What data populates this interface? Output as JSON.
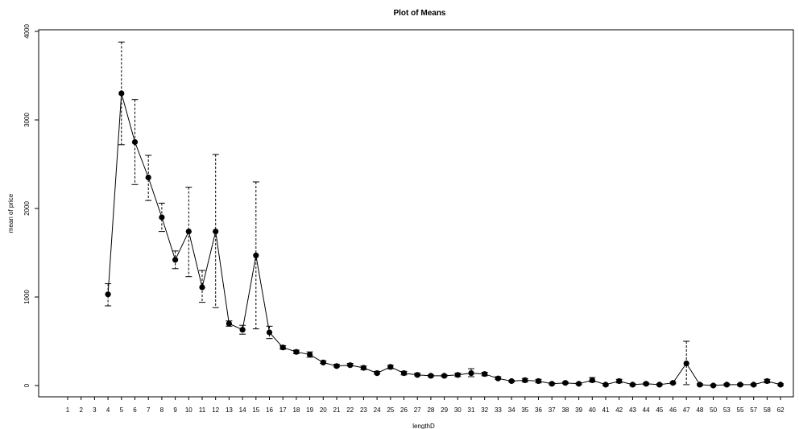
{
  "chart_data": {
    "type": "line",
    "title": "Plot of Means",
    "xlabel": "lengthD",
    "ylabel": "mean of price",
    "categories": [
      "1",
      "2",
      "3",
      "4",
      "5",
      "6",
      "7",
      "8",
      "9",
      "10",
      "11",
      "12",
      "13",
      "14",
      "15",
      "16",
      "17",
      "18",
      "19",
      "20",
      "21",
      "22",
      "23",
      "24",
      "25",
      "26",
      "27",
      "28",
      "29",
      "30",
      "31",
      "32",
      "33",
      "34",
      "35",
      "36",
      "37",
      "38",
      "39",
      "40",
      "41",
      "42",
      "43",
      "44",
      "45",
      "46",
      "47",
      "48",
      "50",
      "53",
      "55",
      "57",
      "58",
      "62"
    ],
    "series": [
      {
        "values": [
          null,
          null,
          null,
          1030,
          3300,
          2750,
          2350,
          1900,
          1420,
          1740,
          1110,
          1740,
          700,
          630,
          1470,
          600,
          430,
          380,
          350,
          260,
          220,
          230,
          200,
          140,
          210,
          140,
          120,
          110,
          110,
          120,
          140,
          130,
          80,
          50,
          60,
          50,
          20,
          30,
          20,
          60,
          10,
          50,
          10,
          20,
          10,
          30,
          250,
          10,
          0,
          10,
          10,
          10,
          50,
          10
        ],
        "ci_low": [
          null,
          null,
          null,
          900,
          2720,
          2270,
          2090,
          1740,
          1320,
          1230,
          940,
          880,
          670,
          580,
          640,
          530,
          410,
          360,
          320,
          250,
          210,
          220,
          180,
          130,
          190,
          120,
          110,
          100,
          100,
          100,
          100,
          110,
          70,
          40,
          40,
          30,
          10,
          20,
          10,
          40,
          0,
          30,
          0,
          10,
          0,
          20,
          10,
          0,
          0,
          0,
          0,
          0,
          30,
          0
        ],
        "ci_high": [
          null,
          null,
          null,
          1150,
          3880,
          3230,
          2600,
          2060,
          1520,
          2240,
          1300,
          2610,
          730,
          680,
          2300,
          670,
          450,
          400,
          380,
          280,
          240,
          250,
          220,
          160,
          230,
          160,
          140,
          120,
          120,
          140,
          190,
          150,
          100,
          60,
          80,
          70,
          30,
          40,
          30,
          90,
          20,
          70,
          20,
          30,
          20,
          40,
          500,
          20,
          10,
          20,
          20,
          20,
          70,
          20
        ]
      }
    ],
    "yticks": [
      0,
      1000,
      2000,
      3000,
      4000
    ],
    "ylim": [
      -130,
      4000
    ],
    "grid": false,
    "legend": "none",
    "colors": {
      "line": "#000000",
      "point": "#000000",
      "axis": "#000000"
    }
  }
}
